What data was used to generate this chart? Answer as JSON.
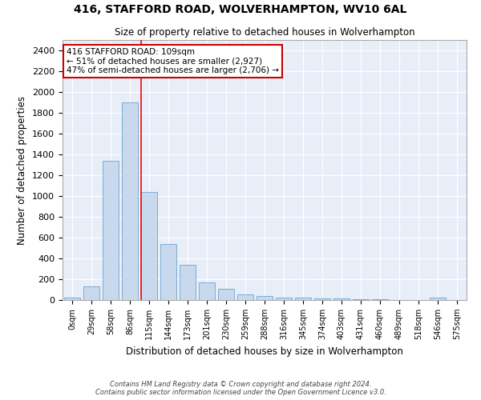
{
  "title1": "416, STAFFORD ROAD, WOLVERHAMPTON, WV10 6AL",
  "title2": "Size of property relative to detached houses in Wolverhampton",
  "xlabel": "Distribution of detached houses by size in Wolverhampton",
  "ylabel": "Number of detached properties",
  "bar_color": "#c9d9ed",
  "bar_edge_color": "#7aadd4",
  "background_color": "#e8eef8",
  "grid_color": "#ffffff",
  "fig_background": "#ffffff",
  "categories": [
    "0sqm",
    "29sqm",
    "58sqm",
    "86sqm",
    "115sqm",
    "144sqm",
    "173sqm",
    "201sqm",
    "230sqm",
    "259sqm",
    "288sqm",
    "316sqm",
    "345sqm",
    "374sqm",
    "403sqm",
    "431sqm",
    "460sqm",
    "489sqm",
    "518sqm",
    "546sqm",
    "575sqm"
  ],
  "values": [
    20,
    130,
    1340,
    1900,
    1040,
    540,
    340,
    170,
    110,
    55,
    35,
    25,
    20,
    15,
    12,
    10,
    5,
    3,
    2,
    20,
    1
  ],
  "red_line_index": 4,
  "annotation_text": "416 STAFFORD ROAD: 109sqm\n← 51% of detached houses are smaller (2,927)\n47% of semi-detached houses are larger (2,706) →",
  "annotation_box_color": "#ffffff",
  "annotation_border_color": "#cc0000",
  "ylim": [
    0,
    2500
  ],
  "yticks": [
    0,
    200,
    400,
    600,
    800,
    1000,
    1200,
    1400,
    1600,
    1800,
    2000,
    2200,
    2400
  ],
  "footer1": "Contains HM Land Registry data © Crown copyright and database right 2024.",
  "footer2": "Contains public sector information licensed under the Open Government Licence v3.0."
}
